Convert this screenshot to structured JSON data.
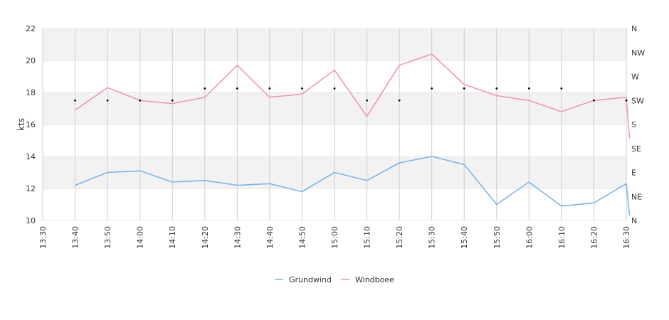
{
  "chart_data": {
    "type": "line",
    "ylabel": "kts",
    "ylim": [
      10,
      22
    ],
    "yticks": [
      10,
      12,
      14,
      16,
      18,
      20,
      22
    ],
    "x_ticks": [
      "13:30",
      "13:40",
      "13:50",
      "14:00",
      "14:10",
      "14:20",
      "14:30",
      "14:40",
      "14:50",
      "15:00",
      "15:10",
      "15:20",
      "15:30",
      "15:40",
      "15:50",
      "16:00",
      "16:10",
      "16:20",
      "16:30"
    ],
    "x_range_minutes": [
      0,
      180
    ],
    "direction_axis": {
      "labels": [
        "N",
        "NE",
        "E",
        "SE",
        "S",
        "SW",
        "W",
        "NW",
        "N"
      ],
      "range_degrees": [
        0,
        360
      ]
    },
    "series": [
      {
        "name": "Grundwind",
        "color": "#7cb5ec",
        "x_minutes": [
          10,
          20,
          30,
          40,
          50,
          60,
          70,
          80,
          90,
          100,
          110,
          120,
          130,
          140,
          150,
          160,
          170,
          180,
          181
        ],
        "values": [
          12.2,
          13.0,
          13.1,
          12.4,
          12.5,
          12.2,
          12.3,
          11.8,
          13.0,
          12.5,
          13.6,
          14.0,
          13.5,
          11.0,
          12.4,
          10.9,
          11.1,
          12.3,
          10.3
        ]
      },
      {
        "name": "Windboee",
        "color": "#f294c0",
        "x_minutes": [
          10,
          20,
          30,
          40,
          50,
          60,
          70,
          80,
          90,
          100,
          110,
          120,
          130,
          140,
          150,
          160,
          170,
          180,
          181
        ],
        "values": [
          16.9,
          18.3,
          17.5,
          17.3,
          17.7,
          19.7,
          17.7,
          17.9,
          19.4,
          16.5,
          19.7,
          20.4,
          18.5,
          17.8,
          17.5,
          16.8,
          17.5,
          17.7,
          15.1
        ]
      }
    ],
    "direction_points": {
      "x_minutes": [
        10,
        20,
        30,
        40,
        50,
        60,
        70,
        80,
        90,
        100,
        110,
        120,
        130,
        140,
        150,
        160,
        170,
        180
      ],
      "degrees": [
        225,
        225,
        225,
        225,
        247.5,
        247.5,
        247.5,
        247.5,
        247.5,
        225,
        225,
        247.5,
        247.5,
        247.5,
        247.5,
        247.5,
        225,
        225
      ]
    },
    "grid": true,
    "legend_position": "bottom-center"
  }
}
